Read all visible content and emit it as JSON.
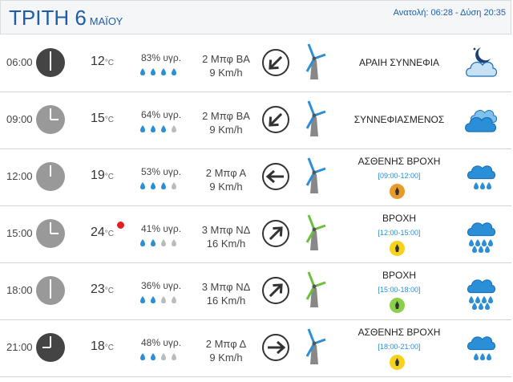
{
  "header": {
    "day": "ΤΡΙΤΗ 6",
    "month": "ΜΑΪΟΥ",
    "sun": "Ανατολή: 06:28  - Δύση 20:35"
  },
  "temp_unit": "°C",
  "rows": [
    {
      "time": "06:00",
      "temp": "12",
      "humidity": "83% υγρ.",
      "drops_filled": 4,
      "wind_force": "2 Μπφ ΒΑ",
      "wind_speed": "9 Km/h",
      "arrow": "down-left",
      "turbine_color": "#2a8fd6",
      "condition": "ΑΡΑΙΗ ΣΥΝΝΕΦΙΑ",
      "range": "",
      "icon": "moon-cloud-icon",
      "clock_dark": true
    },
    {
      "time": "09:00",
      "temp": "15",
      "humidity": "64% υγρ.",
      "drops_filled": 3,
      "wind_force": "2 Μπφ ΒΑ",
      "wind_speed": "9 Km/h",
      "arrow": "down-left",
      "turbine_color": "#2a8fd6",
      "condition": "ΣΥΝΝΕΦΙΑΣΜΕΝΟΣ",
      "range": "",
      "icon": "cloudy-icon",
      "clock_dark": false
    },
    {
      "time": "12:00",
      "temp": "19",
      "humidity": "53% υγρ.",
      "drops_filled": 3,
      "wind_force": "2 Μπφ Α",
      "wind_speed": "9 Km/h",
      "arrow": "left",
      "turbine_color": "#2a8fd6",
      "condition": "ΑΣΘΕΝΗΣ ΒΡΟΧΗ",
      "range": "[09:00-12:00]",
      "icon": "light-rain-icon",
      "clock_dark": false,
      "badge_color": "#e89a2a"
    },
    {
      "time": "15:00",
      "temp": "24",
      "humidity": "41% υγρ.",
      "drops_filled": 2,
      "wind_force": "3 Μπφ ΝΔ",
      "wind_speed": "16 Km/h",
      "arrow": "up-right",
      "turbine_color": "#6bbf3a",
      "condition": "ΒΡΟΧΗ",
      "range": "[12:00-15:00]",
      "icon": "rain-icon",
      "clock_dark": false,
      "badge_color": "#f5d21e",
      "hot": true
    },
    {
      "time": "18:00",
      "temp": "23",
      "humidity": "36% υγρ.",
      "drops_filled": 2,
      "wind_force": "3 Μπφ ΝΔ",
      "wind_speed": "16 Km/h",
      "arrow": "up-right",
      "turbine_color": "#6bbf3a",
      "condition": "ΒΡΟΧΗ",
      "range": "[15:00-18:00]",
      "icon": "rain-icon",
      "clock_dark": false,
      "badge_color": "#8ccf4a"
    },
    {
      "time": "21:00",
      "temp": "18",
      "humidity": "48% υγρ.",
      "drops_filled": 2,
      "wind_force": "2 Μπφ Δ",
      "wind_speed": "9 Km/h",
      "arrow": "right",
      "turbine_color": "#2a8fd6",
      "condition": "ΑΣΘΕΝΗΣ ΒΡΟΧΗ",
      "range": "[18:00-21:00]",
      "icon": "light-rain-icon",
      "clock_dark": true,
      "badge_color": "#f5d21e"
    }
  ]
}
